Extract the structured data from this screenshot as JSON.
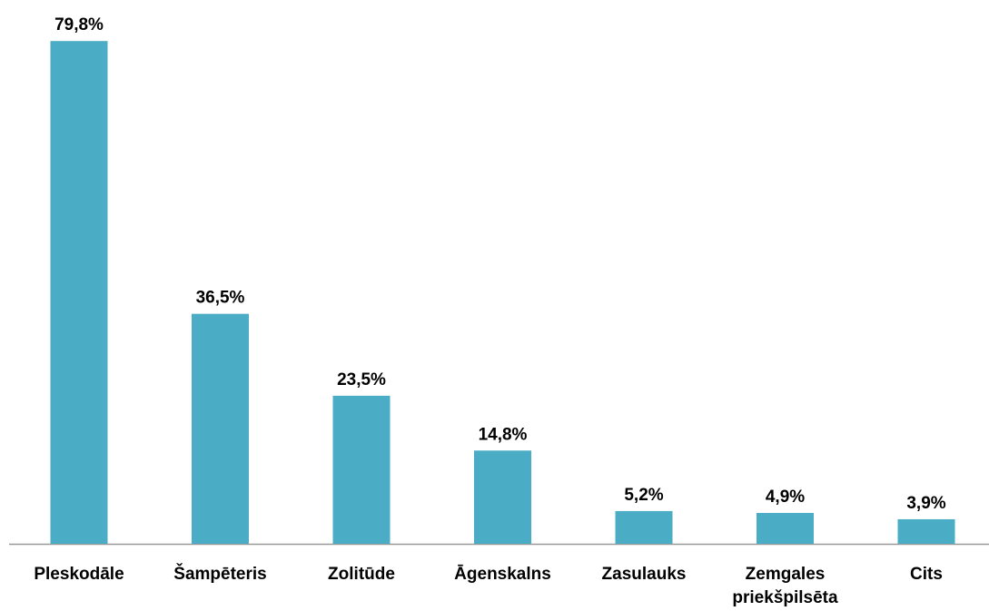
{
  "chart_data": {
    "type": "bar",
    "categories": [
      "Pleskodāle",
      "Šampēteris",
      "Zolitūde",
      "Āgenskalns",
      "Zasulauks",
      "Zemgales priekšpilsēta",
      "Cits"
    ],
    "values": [
      79.8,
      36.5,
      23.5,
      14.8,
      5.2,
      4.9,
      3.9
    ],
    "value_labels": [
      "79,8%",
      "36,5%",
      "23,5%",
      "14,8%",
      "5,2%",
      "4,9%",
      "3,9%"
    ],
    "color": "#4bacc6"
  }
}
